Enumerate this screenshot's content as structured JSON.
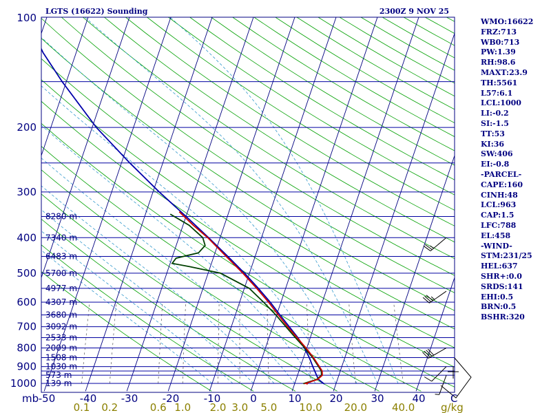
{
  "chart_data": {
    "type": "skew-t",
    "title": "LGTS (16622) Sounding",
    "time": "2300Z  9 NOV 25",
    "pressure_unit_label": "mb",
    "mixing_ratio_unit_label": "g/kg",
    "temperature_unit_label": "C",
    "pressure_levels": [
      {
        "p": 100,
        "label": "100"
      },
      {
        "p": 150,
        "label": ""
      },
      {
        "p": 200,
        "label": "200"
      },
      {
        "p": 250,
        "label": ""
      },
      {
        "p": 300,
        "label": "300"
      },
      {
        "p": 350,
        "label": ""
      },
      {
        "p": 400,
        "label": "400"
      },
      {
        "p": 450,
        "label": ""
      },
      {
        "p": 500,
        "label": "500"
      },
      {
        "p": 550,
        "label": ""
      },
      {
        "p": 600,
        "label": "600"
      },
      {
        "p": 650,
        "label": ""
      },
      {
        "p": 700,
        "label": "700"
      },
      {
        "p": 750,
        "label": ""
      },
      {
        "p": 800,
        "label": "800"
      },
      {
        "p": 850,
        "label": ""
      },
      {
        "p": 900,
        "label": "900"
      },
      {
        "p": 925,
        "label": ""
      },
      {
        "p": 950,
        "label": ""
      },
      {
        "p": 1000,
        "label": "1000"
      }
    ],
    "height_labels": [
      {
        "p": 350,
        "label": "8280 m"
      },
      {
        "p": 400,
        "label": "7340 m"
      },
      {
        "p": 450,
        "label": "6483 m"
      },
      {
        "p": 500,
        "label": "5700 m"
      },
      {
        "p": 550,
        "label": "4977 m"
      },
      {
        "p": 600,
        "label": "4307 m"
      },
      {
        "p": 650,
        "label": "3680 m"
      },
      {
        "p": 700,
        "label": "3092 m"
      },
      {
        "p": 750,
        "label": "2533 m"
      },
      {
        "p": 800,
        "label": "2009 m"
      },
      {
        "p": 850,
        "label": "1508 m"
      },
      {
        "p": 900,
        "label": "1030 m"
      },
      {
        "p": 950,
        "label": "573 m"
      },
      {
        "p": 1000,
        "label": "139 m"
      }
    ],
    "temperature_ticks": [
      {
        "t": -50,
        "label": "-50"
      },
      {
        "t": -40,
        "label": "-40"
      },
      {
        "t": -30,
        "label": "-30"
      },
      {
        "t": -20,
        "label": "-20"
      },
      {
        "t": -10,
        "label": "-10"
      },
      {
        "t": 0,
        "label": "0"
      },
      {
        "t": 10,
        "label": "10"
      },
      {
        "t": 20,
        "label": "20"
      },
      {
        "t": 30,
        "label": "30"
      },
      {
        "t": 40,
        "label": "40"
      }
    ],
    "mixing_ratio_ticks": [
      {
        "w": 0.1,
        "label": "0.1"
      },
      {
        "w": 0.2,
        "label": "0.2"
      },
      {
        "w": 0.6,
        "label": "0.6"
      },
      {
        "w": 1.0,
        "label": "1.0"
      },
      {
        "w": 2.0,
        "label": "2.0"
      },
      {
        "w": 3.0,
        "label": "3.0"
      },
      {
        "w": 5.0,
        "label": "5.0"
      },
      {
        "w": 10.0,
        "label": "10.0"
      },
      {
        "w": 20.0,
        "label": "20.0"
      },
      {
        "w": 40.0,
        "label": "40.0"
      }
    ],
    "temperature_profile": [
      [
        1004,
        13.2
      ],
      [
        1000,
        12.6
      ],
      [
        975,
        15.2
      ],
      [
        950,
        16.0
      ],
      [
        925,
        15.6
      ],
      [
        900,
        14.6
      ],
      [
        850,
        12.4
      ],
      [
        800,
        9.8
      ],
      [
        750,
        6.8
      ],
      [
        700,
        3.6
      ],
      [
        650,
        0.4
      ],
      [
        600,
        -3.0
      ],
      [
        550,
        -7.0
      ],
      [
        500,
        -11.6
      ],
      [
        450,
        -17.0
      ],
      [
        400,
        -23.0
      ],
      [
        370,
        -27.5
      ],
      [
        340,
        -32.0
      ]
    ],
    "dewpoint_profile": [
      [
        1004,
        12.4
      ],
      [
        1000,
        12.2
      ],
      [
        975,
        15.0
      ],
      [
        950,
        15.8
      ],
      [
        925,
        15.4
      ],
      [
        900,
        14.4
      ],
      [
        850,
        12.2
      ],
      [
        800,
        9.5
      ],
      [
        750,
        6.4
      ],
      [
        700,
        3.2
      ],
      [
        650,
        -0.2
      ],
      [
        600,
        -4.2
      ],
      [
        550,
        -8.8
      ],
      [
        500,
        -17.0
      ],
      [
        480,
        -25.0
      ],
      [
        470,
        -29.5
      ],
      [
        455,
        -29.0
      ],
      [
        440,
        -24.0
      ],
      [
        420,
        -23.0
      ],
      [
        400,
        -24.2
      ],
      [
        370,
        -28.5
      ],
      [
        345,
        -34.0
      ]
    ],
    "parcel_profile": [
      [
        1004,
        17.2
      ],
      [
        975,
        15.4
      ],
      [
        950,
        14.6
      ],
      [
        900,
        13.0
      ],
      [
        850,
        11.4
      ],
      [
        800,
        9.4
      ],
      [
        750,
        7.0
      ],
      [
        700,
        4.0
      ],
      [
        650,
        0.8
      ],
      [
        600,
        -2.6
      ],
      [
        550,
        -6.6
      ],
      [
        500,
        -11.2
      ],
      [
        450,
        -16.6
      ],
      [
        400,
        -22.8
      ],
      [
        350,
        -30.0
      ],
      [
        300,
        -38.5
      ],
      [
        250,
        -48.0
      ],
      [
        200,
        -59.0
      ],
      [
        150,
        -71.0
      ],
      [
        125,
        -78.0
      ],
      [
        110,
        -82.0
      ]
    ],
    "dry_adiabats_theta_k": [
      260,
      270,
      280,
      290,
      300,
      310,
      320,
      330,
      340,
      350,
      360,
      370,
      380,
      390,
      400,
      410,
      420,
      430,
      440,
      450,
      460,
      470,
      480,
      490,
      500,
      510,
      520,
      530,
      540,
      550,
      560,
      570
    ],
    "moist_adiabats_start_c": [
      -10,
      -5,
      0,
      5,
      10,
      15,
      20,
      25,
      30,
      35
    ],
    "mixing_ratio_lines_gkg": [
      0.1,
      0.2,
      0.6,
      1.0,
      2.0,
      3.0,
      5.0,
      10.0,
      20.0,
      40.0
    ],
    "wind_barbs": [
      {
        "p": 400,
        "dir": 230,
        "spd": 25
      },
      {
        "p": 560,
        "dir": 235,
        "spd": 35
      },
      {
        "p": 800,
        "dir": 240,
        "spd": 40
      },
      {
        "p": 900,
        "dir": 225,
        "spd": 10
      },
      {
        "p": 950,
        "dir": 200,
        "spd": 5
      }
    ],
    "hodograph_sketch": true,
    "indices": [
      "WMO:16622",
      "FRZ:713",
      "WB0:713",
      "PW:1.39",
      "RH:98.6",
      "MAXT:23.9",
      "TH:5561",
      "L57:6.1",
      "LCL:1000",
      "LI:-0.2",
      "SI:-1.5",
      "TT:53",
      "KI:36",
      "SW:406",
      "EI:-0.8",
      "-PARCEL-",
      "CAPE:160",
      "CINH:48",
      "LCL:963",
      "CAP:1.5",
      "LFC:788",
      "EL:458",
      "-WIND-",
      "STM:231/25",
      "HEL:637",
      "SHR+:0.0",
      "SRDS:141",
      "EHI:0.5",
      "BRN:0.5",
      "BSHR:320"
    ],
    "colors": {
      "frame": "#000080",
      "isobar": "#0000a0",
      "isotherm": "#000080",
      "dry_adiabat": "#00a000",
      "moist_adiabat": "#3399cc",
      "mixing_ratio": "#555555",
      "temperature": "#cc0000",
      "dewpoint": "#004000",
      "parcel": "#0000aa",
      "mix_label": "#8b8000"
    }
  }
}
